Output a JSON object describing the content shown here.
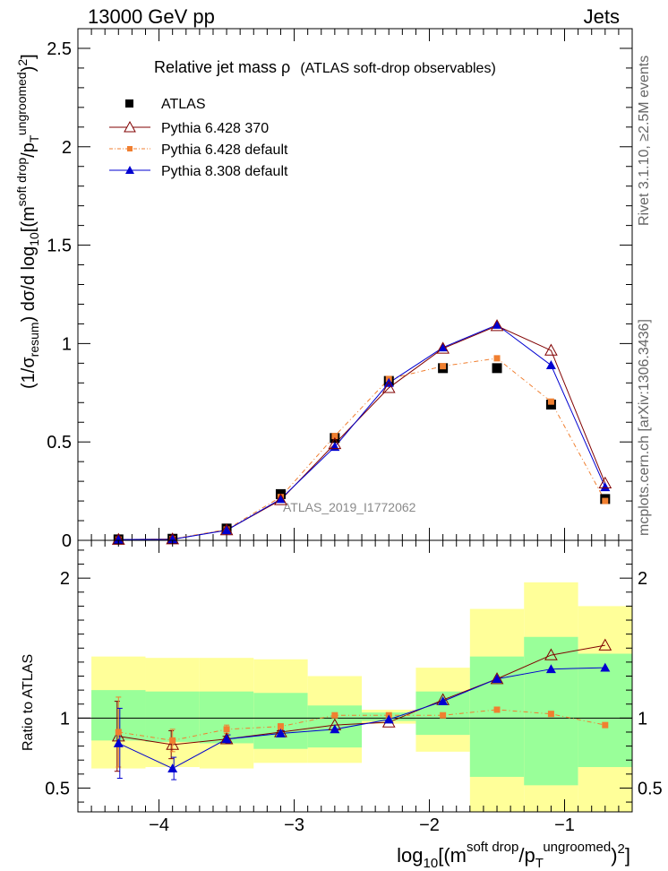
{
  "header": {
    "left": "13000 GeV pp",
    "right": "Jets"
  },
  "plot_title_main": "Relative jet mass  ρ",
  "plot_title_sub": "(ATLAS soft-drop observables)",
  "watermark": "ATLAS_2019_I1772062",
  "side_labels": {
    "rivet": "Rivet 3.1.10, ≥2.5M events",
    "mcplots": "mcplots.cern.ch [arXiv:1306.3436]"
  },
  "colors": {
    "atlas": "#000000",
    "pythia6_370": "#800000",
    "pythia6_default": "#f07f30",
    "pythia8_default": "#0000d0",
    "band_inner": "#99ff99",
    "band_outer": "#ffff99"
  },
  "chart_data": [
    {
      "type": "line",
      "panel": "main",
      "ylabel": "(1/σresum) dσ/d log10[(m soft drop/pT ungroomed)2]",
      "ylim": [
        0,
        2.6
      ],
      "xlim": [
        -4.6,
        -0.5
      ],
      "yticks": [
        "0",
        "0.5",
        "1",
        "1.5",
        "2",
        "2.5"
      ],
      "x": [
        -4.3,
        -3.9,
        -3.5,
        -3.1,
        -2.7,
        -2.3,
        -1.9,
        -1.5,
        -1.1,
        -0.7
      ],
      "series": [
        {
          "name": "ATLAS",
          "marker": "square",
          "values": [
            0.005,
            0.008,
            0.06,
            0.235,
            0.52,
            0.81,
            0.875,
            0.875,
            0.69,
            0.21
          ]
        },
        {
          "name": "Pythia 6.428 370",
          "marker": "open-triangle",
          "values": [
            0.004,
            0.006,
            0.052,
            0.205,
            0.49,
            0.775,
            0.975,
            1.09,
            0.965,
            0.29
          ]
        },
        {
          "name": "Pythia 6.428 default",
          "marker": "small-square",
          "values": [
            0.004,
            0.007,
            0.055,
            0.22,
            0.53,
            0.82,
            0.885,
            0.925,
            0.705,
            0.2
          ]
        },
        {
          "name": "Pythia 8.308 default",
          "marker": "triangle",
          "values": [
            0.004,
            0.005,
            0.051,
            0.21,
            0.475,
            0.8,
            0.98,
            1.095,
            0.89,
            0.27
          ]
        }
      ]
    },
    {
      "type": "line",
      "panel": "ratio",
      "ylabel": "Ratio to ATLAS",
      "xlabel": "log10[(m soft drop/pT ungroomed)2]",
      "ylim": [
        0.33,
        2.27
      ],
      "xlim": [
        -4.6,
        -0.5
      ],
      "yticks": [
        "0.5",
        "1",
        "2"
      ],
      "xticks": [
        "−4",
        "−3",
        "−2",
        "−1"
      ],
      "bins": [
        [
          -4.5,
          -4.1
        ],
        [
          -4.1,
          -3.7
        ],
        [
          -3.7,
          -3.3
        ],
        [
          -3.3,
          -2.9
        ],
        [
          -2.9,
          -2.5
        ],
        [
          -2.5,
          -2.1
        ],
        [
          -2.1,
          -1.7
        ],
        [
          -1.7,
          -1.3
        ],
        [
          -1.3,
          -0.9
        ],
        [
          -0.9,
          -0.5
        ]
      ],
      "band_inner": [
        [
          0.84,
          1.2
        ],
        [
          0.83,
          1.19
        ],
        [
          0.82,
          1.19
        ],
        [
          0.78,
          1.18
        ],
        [
          0.79,
          1.09
        ],
        [
          0.98,
          1.04
        ],
        [
          0.88,
          1.19
        ],
        [
          0.58,
          1.44
        ],
        [
          0.52,
          1.58
        ],
        [
          0.65,
          1.46
        ]
      ],
      "band_outer": [
        [
          0.64,
          1.44
        ],
        [
          0.65,
          1.43
        ],
        [
          0.64,
          1.43
        ],
        [
          0.68,
          1.42
        ],
        [
          0.68,
          1.3
        ],
        [
          0.96,
          1.06
        ],
        [
          0.76,
          1.36
        ],
        [
          0.33,
          1.78
        ],
        [
          0.33,
          1.97
        ],
        [
          0.33,
          1.8
        ]
      ],
      "x": [
        -4.3,
        -3.9,
        -3.5,
        -3.1,
        -2.7,
        -2.3,
        -1.9,
        -1.5,
        -1.1,
        -0.7
      ],
      "series": [
        {
          "name": "Pythia 6.428 370",
          "values": [
            0.87,
            0.81,
            0.85,
            0.9,
            0.95,
            0.97,
            1.13,
            1.28,
            1.45,
            1.52
          ],
          "err": [
            0.25,
            0.1,
            0.02,
            0.01,
            0,
            0,
            0,
            0,
            0,
            0
          ]
        },
        {
          "name": "Pythia 6.428 default",
          "values": [
            0.9,
            0.84,
            0.92,
            0.94,
            1.02,
            1.02,
            1.02,
            1.06,
            1.03,
            0.95
          ],
          "err": [
            0.25,
            0.08,
            0.03,
            0.02,
            0,
            0,
            0,
            0,
            0,
            0
          ]
        },
        {
          "name": "Pythia 8.308 default",
          "values": [
            0.82,
            0.64,
            0.85,
            0.89,
            0.92,
            0.99,
            1.12,
            1.28,
            1.35,
            1.36
          ],
          "err": [
            0.25,
            0.08,
            0.03,
            0.02,
            0,
            0,
            0,
            0,
            0,
            0
          ]
        }
      ]
    }
  ]
}
